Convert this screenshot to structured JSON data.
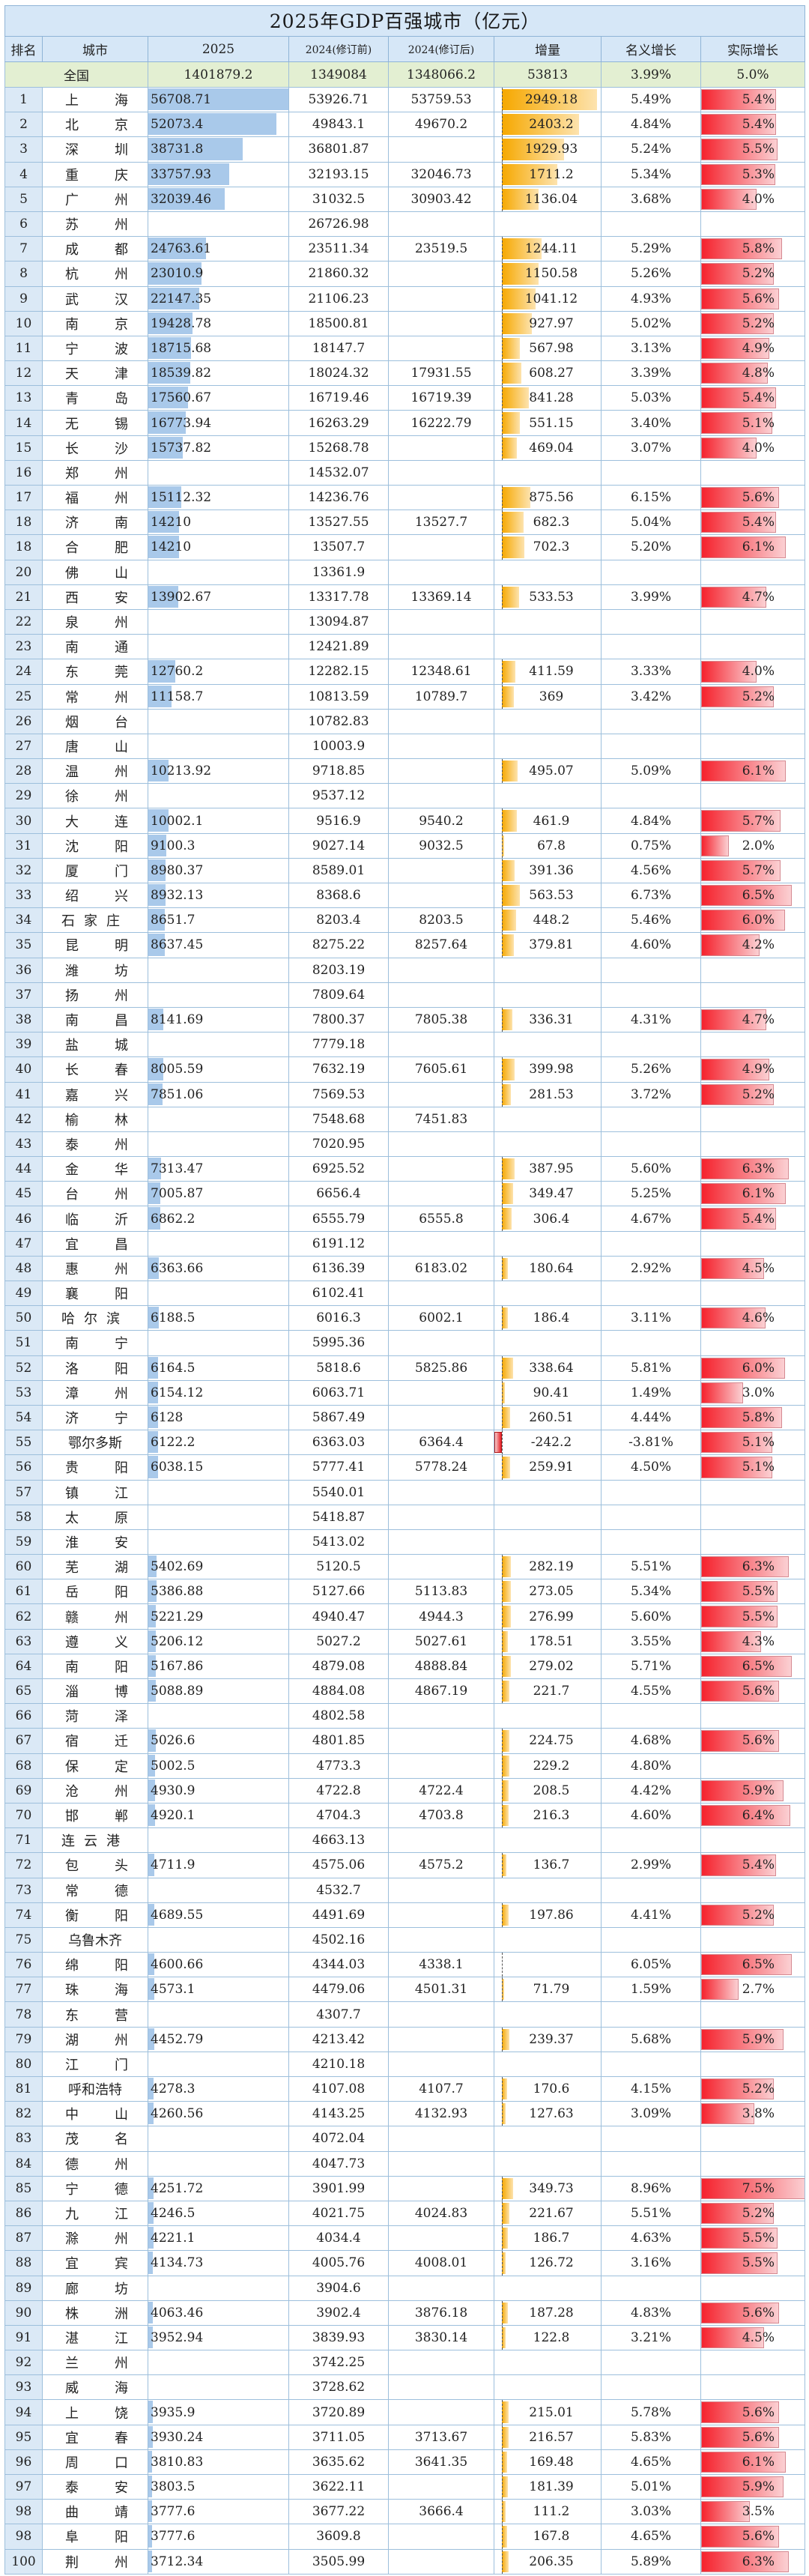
{
  "title": "2025年GDP百强城市（亿元）",
  "headers": [
    "排名",
    "城市",
    "2025",
    "2024(修订前)",
    "2024(修订后)",
    "增量",
    "名义增长",
    "实际增长"
  ],
  "national": {
    "label": "全国",
    "gdp2025": "1401879.2",
    "gdp2024_pre": "1349084",
    "gdp2024_post": "1348066.2",
    "increase": "53813",
    "nominal": "3.99%",
    "real": "5.0%"
  },
  "colors": {
    "header_bg": "#d6e7f7",
    "national_bg": "#e3efd2",
    "rank_bg": "#dbe9f6",
    "bar_2025": "#a9c9ea",
    "bar_increase": "#f6a800",
    "bar_real": "#f5222d",
    "grid": "#9dbfdc"
  },
  "rows": [
    {
      "rank": "1",
      "city": "上海",
      "gdp2025": "56708.71",
      "pre": "53926.71",
      "post": "53759.53",
      "inc": "2949.18",
      "nom": "5.49%",
      "real": "5.4%"
    },
    {
      "rank": "2",
      "city": "北京",
      "gdp2025": "52073.4",
      "pre": "49843.1",
      "post": "49670.2",
      "inc": "2403.2",
      "nom": "4.84%",
      "real": "5.4%"
    },
    {
      "rank": "3",
      "city": "深圳",
      "gdp2025": "38731.8",
      "pre": "36801.87",
      "post": "",
      "inc": "1929.93",
      "nom": "5.24%",
      "real": "5.5%"
    },
    {
      "rank": "4",
      "city": "重庆",
      "gdp2025": "33757.93",
      "pre": "32193.15",
      "post": "32046.73",
      "inc": "1711.2",
      "nom": "5.34%",
      "real": "5.3%"
    },
    {
      "rank": "5",
      "city": "广州",
      "gdp2025": "32039.46",
      "pre": "31032.5",
      "post": "30903.42",
      "inc": "1136.04",
      "nom": "3.68%",
      "real": "4.0%"
    },
    {
      "rank": "6",
      "city": "苏州",
      "gdp2025": "",
      "pre": "26726.98",
      "post": "",
      "inc": "",
      "nom": "",
      "real": ""
    },
    {
      "rank": "7",
      "city": "成都",
      "gdp2025": "24763.61",
      "pre": "23511.34",
      "post": "23519.5",
      "inc": "1244.11",
      "nom": "5.29%",
      "real": "5.8%"
    },
    {
      "rank": "8",
      "city": "杭州",
      "gdp2025": "23010.9",
      "pre": "21860.32",
      "post": "",
      "inc": "1150.58",
      "nom": "5.26%",
      "real": "5.2%"
    },
    {
      "rank": "9",
      "city": "武汉",
      "gdp2025": "22147.35",
      "pre": "21106.23",
      "post": "",
      "inc": "1041.12",
      "nom": "4.93%",
      "real": "5.6%"
    },
    {
      "rank": "10",
      "city": "南京",
      "gdp2025": "19428.78",
      "pre": "18500.81",
      "post": "",
      "inc": "927.97",
      "nom": "5.02%",
      "real": "5.2%"
    },
    {
      "rank": "11",
      "city": "宁波",
      "gdp2025": "18715.68",
      "pre": "18147.7",
      "post": "",
      "inc": "567.98",
      "nom": "3.13%",
      "real": "4.9%"
    },
    {
      "rank": "12",
      "city": "天津",
      "gdp2025": "18539.82",
      "pre": "18024.32",
      "post": "17931.55",
      "inc": "608.27",
      "nom": "3.39%",
      "real": "4.8%"
    },
    {
      "rank": "13",
      "city": "青岛",
      "gdp2025": "17560.67",
      "pre": "16719.46",
      "post": "16719.39",
      "inc": "841.28",
      "nom": "5.03%",
      "real": "5.4%"
    },
    {
      "rank": "14",
      "city": "无锡",
      "gdp2025": "16773.94",
      "pre": "16263.29",
      "post": "16222.79",
      "inc": "551.15",
      "nom": "3.40%",
      "real": "5.1%"
    },
    {
      "rank": "15",
      "city": "长沙",
      "gdp2025": "15737.82",
      "pre": "15268.78",
      "post": "",
      "inc": "469.04",
      "nom": "3.07%",
      "real": "4.0%"
    },
    {
      "rank": "16",
      "city": "郑州",
      "gdp2025": "",
      "pre": "14532.07",
      "post": "",
      "inc": "",
      "nom": "",
      "real": ""
    },
    {
      "rank": "17",
      "city": "福州",
      "gdp2025": "15112.32",
      "pre": "14236.76",
      "post": "",
      "inc": "875.56",
      "nom": "6.15%",
      "real": "5.6%"
    },
    {
      "rank": "18",
      "city": "济南",
      "gdp2025": "14210",
      "pre": "13527.55",
      "post": "13527.7",
      "inc": "682.3",
      "nom": "5.04%",
      "real": "5.4%"
    },
    {
      "rank": "18",
      "city": "合肥",
      "gdp2025": "14210",
      "pre": "13507.7",
      "post": "",
      "inc": "702.3",
      "nom": "5.20%",
      "real": "6.1%"
    },
    {
      "rank": "20",
      "city": "佛山",
      "gdp2025": "",
      "pre": "13361.9",
      "post": "",
      "inc": "",
      "nom": "",
      "real": ""
    },
    {
      "rank": "21",
      "city": "西安",
      "gdp2025": "13902.67",
      "pre": "13317.78",
      "post": "13369.14",
      "inc": "533.53",
      "nom": "3.99%",
      "real": "4.7%"
    },
    {
      "rank": "22",
      "city": "泉州",
      "gdp2025": "",
      "pre": "13094.87",
      "post": "",
      "inc": "",
      "nom": "",
      "real": ""
    },
    {
      "rank": "23",
      "city": "南通",
      "gdp2025": "",
      "pre": "12421.89",
      "post": "",
      "inc": "",
      "nom": "",
      "real": ""
    },
    {
      "rank": "24",
      "city": "东莞",
      "gdp2025": "12760.2",
      "pre": "12282.15",
      "post": "12348.61",
      "inc": "411.59",
      "nom": "3.33%",
      "real": "4.0%"
    },
    {
      "rank": "25",
      "city": "常州",
      "gdp2025": "11158.7",
      "pre": "10813.59",
      "post": "10789.7",
      "inc": "369",
      "nom": "3.42%",
      "real": "5.2%"
    },
    {
      "rank": "26",
      "city": "烟台",
      "gdp2025": "",
      "pre": "10782.83",
      "post": "",
      "inc": "",
      "nom": "",
      "real": ""
    },
    {
      "rank": "27",
      "city": "唐山",
      "gdp2025": "",
      "pre": "10003.9",
      "post": "",
      "inc": "",
      "nom": "",
      "real": ""
    },
    {
      "rank": "28",
      "city": "温州",
      "gdp2025": "10213.92",
      "pre": "9718.85",
      "post": "",
      "inc": "495.07",
      "nom": "5.09%",
      "real": "6.1%"
    },
    {
      "rank": "29",
      "city": "徐州",
      "gdp2025": "",
      "pre": "9537.12",
      "post": "",
      "inc": "",
      "nom": "",
      "real": ""
    },
    {
      "rank": "30",
      "city": "大连",
      "gdp2025": "10002.1",
      "pre": "9516.9",
      "post": "9540.2",
      "inc": "461.9",
      "nom": "4.84%",
      "real": "5.7%"
    },
    {
      "rank": "31",
      "city": "沈阳",
      "gdp2025": "9100.3",
      "pre": "9027.14",
      "post": "9032.5",
      "inc": "67.8",
      "nom": "0.75%",
      "real": "2.0%"
    },
    {
      "rank": "32",
      "city": "厦门",
      "gdp2025": "8980.37",
      "pre": "8589.01",
      "post": "",
      "inc": "391.36",
      "nom": "4.56%",
      "real": "5.7%"
    },
    {
      "rank": "33",
      "city": "绍兴",
      "gdp2025": "8932.13",
      "pre": "8368.6",
      "post": "",
      "inc": "563.53",
      "nom": "6.73%",
      "real": "6.5%"
    },
    {
      "rank": "34",
      "city": "石家庄",
      "gdp2025": "8651.7",
      "pre": "8203.4",
      "post": "8203.5",
      "inc": "448.2",
      "nom": "5.46%",
      "real": "6.0%"
    },
    {
      "rank": "35",
      "city": "昆明",
      "gdp2025": "8637.45",
      "pre": "8275.22",
      "post": "8257.64",
      "inc": "379.81",
      "nom": "4.60%",
      "real": "4.2%"
    },
    {
      "rank": "36",
      "city": "潍坊",
      "gdp2025": "",
      "pre": "8203.19",
      "post": "",
      "inc": "",
      "nom": "",
      "real": ""
    },
    {
      "rank": "37",
      "city": "扬州",
      "gdp2025": "",
      "pre": "7809.64",
      "post": "",
      "inc": "",
      "nom": "",
      "real": ""
    },
    {
      "rank": "38",
      "city": "南昌",
      "gdp2025": "8141.69",
      "pre": "7800.37",
      "post": "7805.38",
      "inc": "336.31",
      "nom": "4.31%",
      "real": "4.7%"
    },
    {
      "rank": "39",
      "city": "盐城",
      "gdp2025": "",
      "pre": "7779.18",
      "post": "",
      "inc": "",
      "nom": "",
      "real": ""
    },
    {
      "rank": "40",
      "city": "长春",
      "gdp2025": "8005.59",
      "pre": "7632.19",
      "post": "7605.61",
      "inc": "399.98",
      "nom": "5.26%",
      "real": "4.9%"
    },
    {
      "rank": "41",
      "city": "嘉兴",
      "gdp2025": "7851.06",
      "pre": "7569.53",
      "post": "",
      "inc": "281.53",
      "nom": "3.72%",
      "real": "5.2%"
    },
    {
      "rank": "42",
      "city": "榆林",
      "gdp2025": "",
      "pre": "7548.68",
      "post": "7451.83",
      "inc": "",
      "nom": "",
      "real": ""
    },
    {
      "rank": "43",
      "city": "泰州",
      "gdp2025": "",
      "pre": "7020.95",
      "post": "",
      "inc": "",
      "nom": "",
      "real": ""
    },
    {
      "rank": "44",
      "city": "金华",
      "gdp2025": "7313.47",
      "pre": "6925.52",
      "post": "",
      "inc": "387.95",
      "nom": "5.60%",
      "real": "6.3%"
    },
    {
      "rank": "45",
      "city": "台州",
      "gdp2025": "7005.87",
      "pre": "6656.4",
      "post": "",
      "inc": "349.47",
      "nom": "5.25%",
      "real": "6.1%"
    },
    {
      "rank": "46",
      "city": "临沂",
      "gdp2025": "6862.2",
      "pre": "6555.79",
      "post": "6555.8",
      "inc": "306.4",
      "nom": "4.67%",
      "real": "5.4%"
    },
    {
      "rank": "47",
      "city": "宜昌",
      "gdp2025": "",
      "pre": "6191.12",
      "post": "",
      "inc": "",
      "nom": "",
      "real": ""
    },
    {
      "rank": "48",
      "city": "惠州",
      "gdp2025": "6363.66",
      "pre": "6136.39",
      "post": "6183.02",
      "inc": "180.64",
      "nom": "2.92%",
      "real": "4.5%"
    },
    {
      "rank": "49",
      "city": "襄阳",
      "gdp2025": "",
      "pre": "6102.41",
      "post": "",
      "inc": "",
      "nom": "",
      "real": ""
    },
    {
      "rank": "50",
      "city": "哈尔滨",
      "gdp2025": "6188.5",
      "pre": "6016.3",
      "post": "6002.1",
      "inc": "186.4",
      "nom": "3.11%",
      "real": "4.6%"
    },
    {
      "rank": "51",
      "city": "南宁",
      "gdp2025": "",
      "pre": "5995.36",
      "post": "",
      "inc": "",
      "nom": "",
      "real": ""
    },
    {
      "rank": "52",
      "city": "洛阳",
      "gdp2025": "6164.5",
      "pre": "5818.6",
      "post": "5825.86",
      "inc": "338.64",
      "nom": "5.81%",
      "real": "6.0%"
    },
    {
      "rank": "53",
      "city": "漳州",
      "gdp2025": "6154.12",
      "pre": "6063.71",
      "post": "",
      "inc": "90.41",
      "nom": "1.49%",
      "real": "3.0%"
    },
    {
      "rank": "54",
      "city": "济宁",
      "gdp2025": "6128",
      "pre": "5867.49",
      "post": "",
      "inc": "260.51",
      "nom": "4.44%",
      "real": "5.8%"
    },
    {
      "rank": "55",
      "city": "鄂尔多斯",
      "gdp2025": "6122.2",
      "pre": "6363.03",
      "post": "6364.4",
      "inc": "-242.2",
      "nom": "-3.81%",
      "real": "5.1%"
    },
    {
      "rank": "56",
      "city": "贵阳",
      "gdp2025": "6038.15",
      "pre": "5777.41",
      "post": "5778.24",
      "inc": "259.91",
      "nom": "4.50%",
      "real": "5.1%"
    },
    {
      "rank": "57",
      "city": "镇江",
      "gdp2025": "",
      "pre": "5540.01",
      "post": "",
      "inc": "",
      "nom": "",
      "real": ""
    },
    {
      "rank": "58",
      "city": "太原",
      "gdp2025": "",
      "pre": "5418.87",
      "post": "",
      "inc": "",
      "nom": "",
      "real": ""
    },
    {
      "rank": "59",
      "city": "淮安",
      "gdp2025": "",
      "pre": "5413.02",
      "post": "",
      "inc": "",
      "nom": "",
      "real": ""
    },
    {
      "rank": "60",
      "city": "芜湖",
      "gdp2025": "5402.69",
      "pre": "5120.5",
      "post": "",
      "inc": "282.19",
      "nom": "5.51%",
      "real": "6.3%"
    },
    {
      "rank": "61",
      "city": "岳阳",
      "gdp2025": "5386.88",
      "pre": "5127.66",
      "post": "5113.83",
      "inc": "273.05",
      "nom": "5.34%",
      "real": "5.5%"
    },
    {
      "rank": "62",
      "city": "赣州",
      "gdp2025": "5221.29",
      "pre": "4940.47",
      "post": "4944.3",
      "inc": "276.99",
      "nom": "5.60%",
      "real": "5.5%"
    },
    {
      "rank": "63",
      "city": "遵义",
      "gdp2025": "5206.12",
      "pre": "5027.2",
      "post": "5027.61",
      "inc": "178.51",
      "nom": "3.55%",
      "real": "4.3%"
    },
    {
      "rank": "64",
      "city": "南阳",
      "gdp2025": "5167.86",
      "pre": "4879.08",
      "post": "4888.84",
      "inc": "279.02",
      "nom": "5.71%",
      "real": "6.5%"
    },
    {
      "rank": "65",
      "city": "淄博",
      "gdp2025": "5088.89",
      "pre": "4884.08",
      "post": "4867.19",
      "inc": "221.7",
      "nom": "4.55%",
      "real": "5.6%"
    },
    {
      "rank": "66",
      "city": "菏泽",
      "gdp2025": "",
      "pre": "4802.58",
      "post": "",
      "inc": "",
      "nom": "",
      "real": ""
    },
    {
      "rank": "67",
      "city": "宿迁",
      "gdp2025": "5026.6",
      "pre": "4801.85",
      "post": "",
      "inc": "224.75",
      "nom": "4.68%",
      "real": "5.6%"
    },
    {
      "rank": "68",
      "city": "保定",
      "gdp2025": "5002.5",
      "pre": "4773.3",
      "post": "",
      "inc": "229.2",
      "nom": "4.80%",
      "real": ""
    },
    {
      "rank": "69",
      "city": "沧州",
      "gdp2025": "4930.9",
      "pre": "4722.8",
      "post": "4722.4",
      "inc": "208.5",
      "nom": "4.42%",
      "real": "5.9%"
    },
    {
      "rank": "70",
      "city": "邯郸",
      "gdp2025": "4920.1",
      "pre": "4704.3",
      "post": "4703.8",
      "inc": "216.3",
      "nom": "4.60%",
      "real": "6.4%"
    },
    {
      "rank": "71",
      "city": "连云港",
      "gdp2025": "",
      "pre": "4663.13",
      "post": "",
      "inc": "",
      "nom": "",
      "real": ""
    },
    {
      "rank": "72",
      "city": "包头",
      "gdp2025": "4711.9",
      "pre": "4575.06",
      "post": "4575.2",
      "inc": "136.7",
      "nom": "2.99%",
      "real": "5.4%"
    },
    {
      "rank": "73",
      "city": "常德",
      "gdp2025": "",
      "pre": "4532.7",
      "post": "",
      "inc": "",
      "nom": "",
      "real": ""
    },
    {
      "rank": "74",
      "city": "衡阳",
      "gdp2025": "4689.55",
      "pre": "4491.69",
      "post": "",
      "inc": "197.86",
      "nom": "4.41%",
      "real": "5.2%"
    },
    {
      "rank": "75",
      "city": "乌鲁木齐",
      "gdp2025": "",
      "pre": "4502.16",
      "post": "",
      "inc": "",
      "nom": "",
      "real": ""
    },
    {
      "rank": "76",
      "city": "绵阳",
      "gdp2025": "4600.66",
      "pre": "4344.03",
      "post": "4338.1",
      "inc": "",
      "nom": "6.05%",
      "real": "6.5%"
    },
    {
      "rank": "77",
      "city": "珠海",
      "gdp2025": "4573.1",
      "pre": "4479.06",
      "post": "4501.31",
      "inc": "71.79",
      "nom": "1.59%",
      "real": "2.7%"
    },
    {
      "rank": "78",
      "city": "东营",
      "gdp2025": "",
      "pre": "4307.7",
      "post": "",
      "inc": "",
      "nom": "",
      "real": ""
    },
    {
      "rank": "79",
      "city": "湖州",
      "gdp2025": "4452.79",
      "pre": "4213.42",
      "post": "",
      "inc": "239.37",
      "nom": "5.68%",
      "real": "5.9%"
    },
    {
      "rank": "80",
      "city": "江门",
      "gdp2025": "",
      "pre": "4210.18",
      "post": "",
      "inc": "",
      "nom": "",
      "real": ""
    },
    {
      "rank": "81",
      "city": "呼和浩特",
      "gdp2025": "4278.3",
      "pre": "4107.08",
      "post": "4107.7",
      "inc": "170.6",
      "nom": "4.15%",
      "real": "5.2%"
    },
    {
      "rank": "82",
      "city": "中山",
      "gdp2025": "4260.56",
      "pre": "4143.25",
      "post": "4132.93",
      "inc": "127.63",
      "nom": "3.09%",
      "real": "3.8%"
    },
    {
      "rank": "83",
      "city": "茂名",
      "gdp2025": "",
      "pre": "4072.04",
      "post": "",
      "inc": "",
      "nom": "",
      "real": ""
    },
    {
      "rank": "84",
      "city": "德州",
      "gdp2025": "",
      "pre": "4047.73",
      "post": "",
      "inc": "",
      "nom": "",
      "real": ""
    },
    {
      "rank": "85",
      "city": "宁德",
      "gdp2025": "4251.72",
      "pre": "3901.99",
      "post": "",
      "inc": "349.73",
      "nom": "8.96%",
      "real": "7.5%"
    },
    {
      "rank": "86",
      "city": "九江",
      "gdp2025": "4246.5",
      "pre": "4021.75",
      "post": "4024.83",
      "inc": "221.67",
      "nom": "5.51%",
      "real": "5.2%"
    },
    {
      "rank": "87",
      "city": "滁州",
      "gdp2025": "4221.1",
      "pre": "4034.4",
      "post": "",
      "inc": "186.7",
      "nom": "4.63%",
      "real": "5.5%"
    },
    {
      "rank": "88",
      "city": "宜宾",
      "gdp2025": "4134.73",
      "pre": "4005.76",
      "post": "4008.01",
      "inc": "126.72",
      "nom": "3.16%",
      "real": "5.5%"
    },
    {
      "rank": "89",
      "city": "廊坊",
      "gdp2025": "",
      "pre": "3904.6",
      "post": "",
      "inc": "",
      "nom": "",
      "real": ""
    },
    {
      "rank": "90",
      "city": "株洲",
      "gdp2025": "4063.46",
      "pre": "3902.4",
      "post": "3876.18",
      "inc": "187.28",
      "nom": "4.83%",
      "real": "5.6%"
    },
    {
      "rank": "91",
      "city": "湛江",
      "gdp2025": "3952.94",
      "pre": "3839.93",
      "post": "3830.14",
      "inc": "122.8",
      "nom": "3.21%",
      "real": "4.5%"
    },
    {
      "rank": "92",
      "city": "兰州",
      "gdp2025": "",
      "pre": "3742.25",
      "post": "",
      "inc": "",
      "nom": "",
      "real": ""
    },
    {
      "rank": "93",
      "city": "威海",
      "gdp2025": "",
      "pre": "3728.62",
      "post": "",
      "inc": "",
      "nom": "",
      "real": ""
    },
    {
      "rank": "94",
      "city": "上饶",
      "gdp2025": "3935.9",
      "pre": "3720.89",
      "post": "",
      "inc": "215.01",
      "nom": "5.78%",
      "real": "5.6%"
    },
    {
      "rank": "95",
      "city": "宜春",
      "gdp2025": "3930.24",
      "pre": "3711.05",
      "post": "3713.67",
      "inc": "216.57",
      "nom": "5.83%",
      "real": "5.6%"
    },
    {
      "rank": "96",
      "city": "周口",
      "gdp2025": "3810.83",
      "pre": "3635.62",
      "post": "3641.35",
      "inc": "169.48",
      "nom": "4.65%",
      "real": "6.1%"
    },
    {
      "rank": "97",
      "city": "泰安",
      "gdp2025": "3803.5",
      "pre": "3622.11",
      "post": "",
      "inc": "181.39",
      "nom": "5.01%",
      "real": "5.9%"
    },
    {
      "rank": "98",
      "city": "曲靖",
      "gdp2025": "3777.6",
      "pre": "3677.22",
      "post": "3666.4",
      "inc": "111.2",
      "nom": "3.03%",
      "real": "3.5%"
    },
    {
      "rank": "98",
      "city": "阜阳",
      "gdp2025": "3777.6",
      "pre": "3609.8",
      "post": "",
      "inc": "167.8",
      "nom": "4.65%",
      "real": "5.6%"
    },
    {
      "rank": "100",
      "city": "荆州",
      "gdp2025": "3712.34",
      "pre": "3505.99",
      "post": "",
      "inc": "206.35",
      "nom": "5.89%",
      "real": "6.3%"
    }
  ]
}
